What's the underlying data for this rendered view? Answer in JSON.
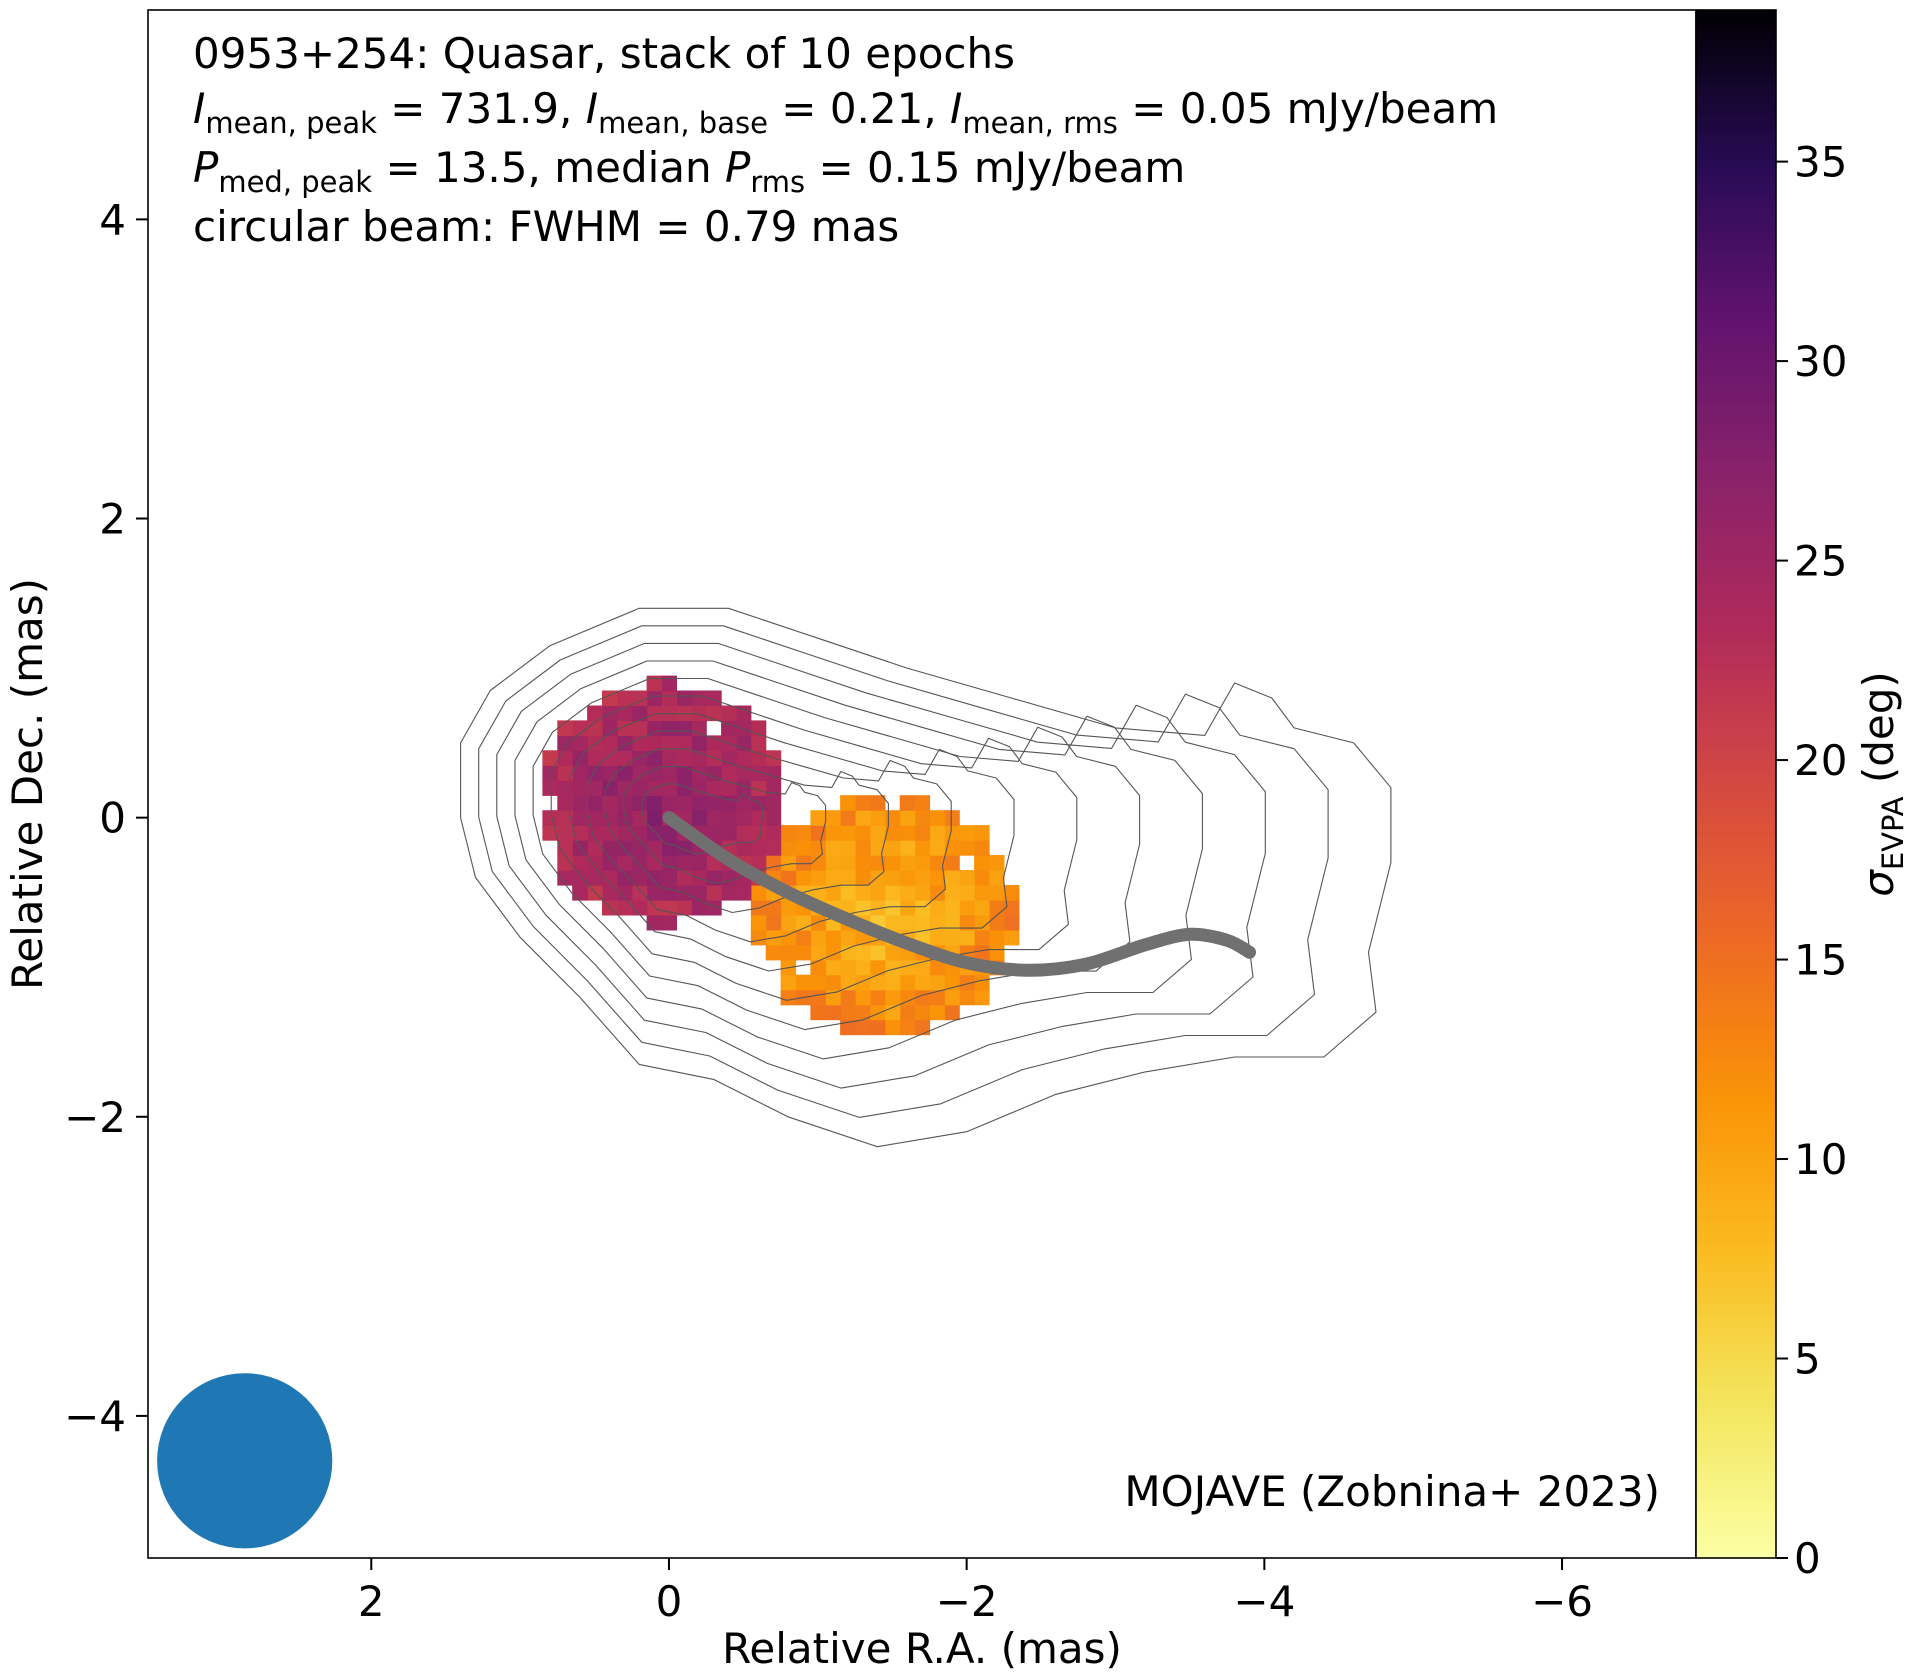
{
  "chart_data": {
    "type": "heatmap",
    "title_lines": [
      "0953+254: Quasar, stack of 10 epochs",
      "I_mean,peak = 731.9, I_mean,base = 0.21, I_mean,rms = 0.05 mJy/beam",
      "P_med,peak = 13.5, median P_rms = 0.15 mJy/beam",
      "circular beam: FWHM = 0.79 mas"
    ],
    "title": {
      "line1": "0953+254: Quasar, stack of 10 epochs",
      "line2": {
        "sym1": "I",
        "sub1": "mean, peak",
        "val1": " = 731.9, ",
        "sym2": "I",
        "sub2": "mean, base",
        "val2": " = 0.21, ",
        "sym3": "I",
        "sub3": "mean, rms",
        "val3": " = 0.05 mJy/beam"
      },
      "line3": {
        "sym1": "P",
        "sub1": "med, peak",
        "val1": " = 13.5, median ",
        "sym2": "P",
        "sub2": "rms",
        "val2": " = 0.15 mJy/beam"
      },
      "line4": "circular beam: FWHM = 0.79 mas"
    },
    "credit": "MOJAVE (Zobnina+ 2023)",
    "xlabel": "Relative R.A. (mas)",
    "ylabel": "Relative Dec. (mas)",
    "colorbar_label": {
      "sym": "σ",
      "sub": "EVPA",
      "unit": " (deg)"
    },
    "xlim": [
      3.5,
      -6.9
    ],
    "ylim": [
      -4.95,
      5.4
    ],
    "xticks": [
      2,
      0,
      -2,
      -4,
      -6
    ],
    "xtick_labels": [
      "2",
      "0",
      "−2",
      "−4",
      "−6"
    ],
    "yticks": [
      4,
      2,
      0,
      -2,
      -4
    ],
    "ytick_labels": [
      "4",
      "2",
      "0",
      "−2",
      "−4"
    ],
    "colorbar_range": [
      0,
      38.8
    ],
    "colorbar_ticks": [
      0,
      5,
      10,
      15,
      20,
      25,
      30,
      35
    ],
    "colorbar_tick_labels": [
      "0",
      "5",
      "10",
      "15",
      "20",
      "25",
      "30",
      "35"
    ],
    "colormap": "inferno_r",
    "pixel_size_mas": 0.1,
    "core_component": {
      "ra": 0.05,
      "dec": 0.1,
      "radius": 0.85,
      "sigma_center": 27,
      "sigma_edge": 23
    },
    "jet_component": {
      "ra": -1.45,
      "dec": -0.65,
      "radius": 0.85,
      "sigma_center": 8,
      "sigma_edge": 13
    },
    "ridge_line": {
      "color": "#707070",
      "ra": [
        0.0,
        -0.4,
        -0.8,
        -1.2,
        -1.6,
        -2.0,
        -2.4,
        -2.8,
        -3.2,
        -3.5,
        -3.75,
        -3.9
      ],
      "dec": [
        0.0,
        -0.28,
        -0.5,
        -0.68,
        -0.84,
        -0.97,
        -1.02,
        -0.98,
        -0.85,
        -0.78,
        -0.82,
        -0.9
      ]
    },
    "contours": {
      "color": "#555555",
      "count": 11,
      "outer_outline": [
        [
          1.4,
          0.5
        ],
        [
          1.2,
          0.85
        ],
        [
          0.8,
          1.15
        ],
        [
          0.2,
          1.4
        ],
        [
          -0.4,
          1.4
        ],
        [
          -1.0,
          1.2
        ],
        [
          -1.6,
          1.0
        ],
        [
          -2.3,
          0.8
        ],
        [
          -3.0,
          0.6
        ],
        [
          -3.6,
          0.55
        ],
        [
          -3.8,
          0.9
        ],
        [
          -4.05,
          0.8
        ],
        [
          -4.2,
          0.6
        ],
        [
          -4.6,
          0.5
        ],
        [
          -4.85,
          0.2
        ],
        [
          -4.85,
          -0.3
        ],
        [
          -4.7,
          -0.9
        ],
        [
          -4.75,
          -1.3
        ],
        [
          -4.4,
          -1.6
        ],
        [
          -3.8,
          -1.6
        ],
        [
          -3.2,
          -1.7
        ],
        [
          -2.6,
          -1.85
        ],
        [
          -2.0,
          -2.1
        ],
        [
          -1.4,
          -2.2
        ],
        [
          -0.8,
          -2.0
        ],
        [
          -0.3,
          -1.75
        ],
        [
          0.2,
          -1.65
        ],
        [
          0.6,
          -1.2
        ],
        [
          1.0,
          -0.8
        ],
        [
          1.3,
          -0.4
        ],
        [
          1.4,
          0.0
        ]
      ]
    },
    "beam": {
      "ra": 2.85,
      "dec": -4.3,
      "fwhm_mas": 0.79,
      "color": "#1f77b4"
    }
  }
}
